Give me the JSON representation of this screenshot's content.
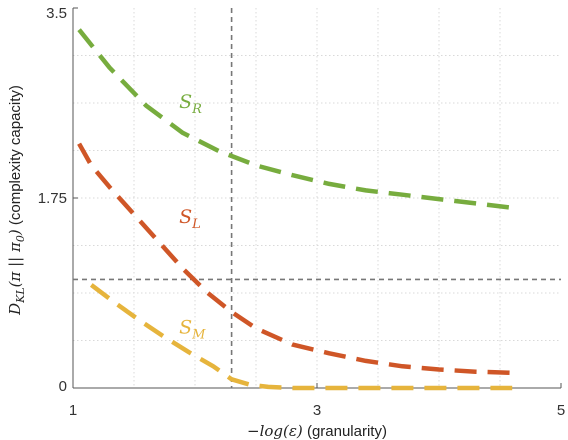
{
  "chart_data": {
    "type": "line",
    "xlabel": {
      "math": "−log(ε)",
      "text": " (granularity)"
    },
    "ylabel": {
      "math": "D",
      "sub": "KL",
      "math2": "(π || π",
      "sub2": "0",
      "math3": ")",
      "text": " (complexity capacity)"
    },
    "xlim": [
      1,
      5
    ],
    "ylim": [
      0,
      3.5
    ],
    "xticks": [
      1,
      3,
      5
    ],
    "xtick_labels": [
      "1",
      "3",
      "5"
    ],
    "yticks": [
      0,
      1.75,
      3.5
    ],
    "ytick_labels": [
      "0",
      "1.75",
      "3.5"
    ],
    "grid": true,
    "reference_lines": {
      "vertical_x": 2.3,
      "horizontal_y": 1.0
    },
    "series": [
      {
        "name": "S",
        "sub": "R",
        "color": "#77ac3e",
        "x": [
          1.05,
          1.3,
          1.6,
          1.9,
          2.2,
          2.5,
          2.8,
          3.1,
          3.4,
          3.7,
          4.0,
          4.3,
          4.6
        ],
        "y": [
          3.3,
          2.95,
          2.6,
          2.35,
          2.18,
          2.05,
          1.96,
          1.88,
          1.82,
          1.78,
          1.74,
          1.7,
          1.66
        ]
      },
      {
        "name": "S",
        "sub": "L",
        "color": "#cf5627",
        "x": [
          1.05,
          1.15,
          1.3,
          1.5,
          1.7,
          1.9,
          2.1,
          2.3,
          2.5,
          2.8,
          3.1,
          3.4,
          3.7,
          4.0,
          4.3,
          4.6
        ],
        "y": [
          2.25,
          2.05,
          1.85,
          1.6,
          1.35,
          1.1,
          0.88,
          0.7,
          0.55,
          0.4,
          0.32,
          0.25,
          0.2,
          0.17,
          0.15,
          0.14
        ]
      },
      {
        "name": "S",
        "sub": "M",
        "color": "#e6b43c",
        "x": [
          1.15,
          1.35,
          1.55,
          1.75,
          1.95,
          2.15,
          2.3,
          2.45,
          2.6,
          2.8,
          3.1,
          3.4,
          3.7,
          4.0,
          4.3,
          4.6
        ],
        "y": [
          0.95,
          0.78,
          0.62,
          0.47,
          0.33,
          0.2,
          0.08,
          0.03,
          0.01,
          0.0,
          0.0,
          0.0,
          0.0,
          0.0,
          0.0,
          0.0
        ]
      }
    ],
    "series_label_positions": [
      {
        "x": 1.87,
        "y": 2.58
      },
      {
        "x": 1.87,
        "y": 1.52
      },
      {
        "x": 1.87,
        "y": 0.5
      }
    ]
  }
}
